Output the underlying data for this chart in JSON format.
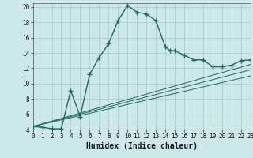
{
  "title": "",
  "xlabel": "Humidex (Indice chaleur)",
  "ylabel": "",
  "bg_color": "#cce8e8",
  "grid_color": "#b0cccc",
  "line_color": "#1a6b5a",
  "xlim": [
    0,
    23
  ],
  "ylim": [
    4,
    20.5
  ],
  "yticks": [
    4,
    6,
    8,
    10,
    12,
    14,
    16,
    18,
    20
  ],
  "xticks": [
    0,
    1,
    2,
    3,
    4,
    5,
    6,
    7,
    8,
    9,
    10,
    11,
    12,
    13,
    14,
    15,
    16,
    17,
    18,
    19,
    20,
    21,
    22,
    23
  ],
  "main_x": [
    0,
    1,
    2,
    3,
    4,
    5,
    6,
    7,
    8,
    9,
    10,
    11,
    12,
    13,
    14,
    14.5,
    15,
    16,
    17,
    18,
    19,
    20,
    21,
    22,
    23
  ],
  "main_y": [
    4.4,
    4.3,
    4.1,
    4.1,
    9.1,
    5.7,
    11.2,
    13.4,
    15.2,
    18.2,
    20.2,
    19.3,
    19.1,
    18.2,
    14.8,
    14.3,
    14.3,
    13.7,
    13.1,
    13.1,
    12.2,
    12.2,
    12.4,
    13.0,
    13.1
  ],
  "line1_x": [
    0,
    23
  ],
  "line1_y": [
    4.4,
    12.5
  ],
  "line2_x": [
    0,
    23
  ],
  "line2_y": [
    4.4,
    11.8
  ],
  "line3_x": [
    0,
    23
  ],
  "line3_y": [
    4.4,
    11.0
  ]
}
